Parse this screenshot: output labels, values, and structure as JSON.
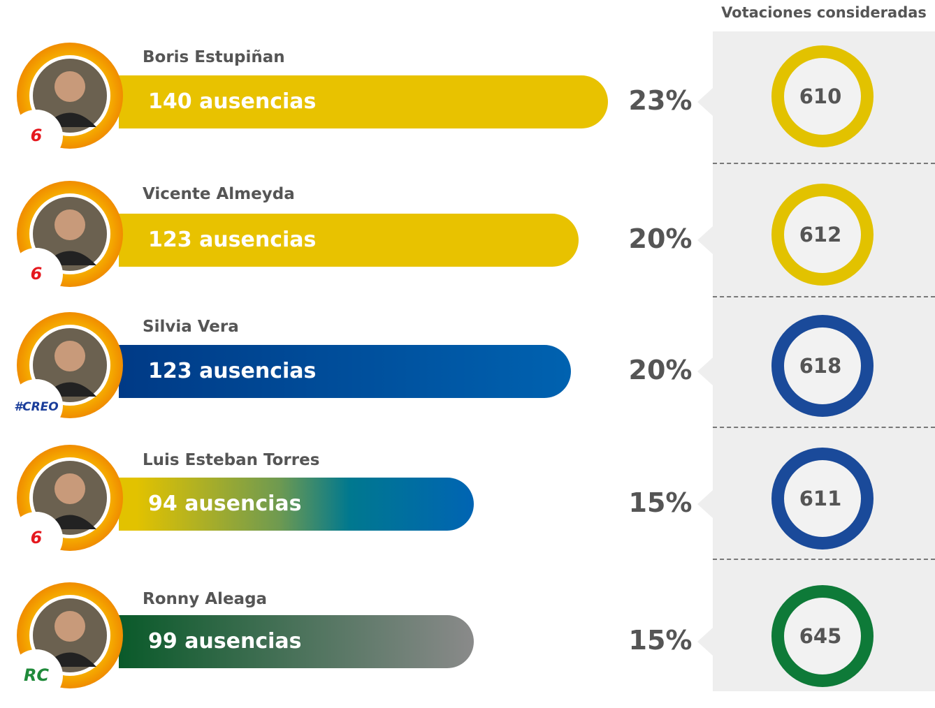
{
  "header": {
    "title": "Votaciones consideradas"
  },
  "rows": [
    {
      "name": "Boris Estupiñan",
      "absences": "140 ausencias",
      "percent": "23%",
      "votes": "610",
      "party": "6"
    },
    {
      "name": "Vicente Almeyda",
      "absences": "123 ausencias",
      "percent": "20%",
      "votes": "612",
      "party": "6"
    },
    {
      "name": "Silvia Vera",
      "absences": "123 ausencias",
      "percent": "20%",
      "votes": "618",
      "party": "#CREO"
    },
    {
      "name": "Luis Esteban Torres",
      "absences": "94 ausencias",
      "percent": "15%",
      "votes": "611",
      "party": "6"
    },
    {
      "name": "Ronny Aleaga",
      "absences": "99 ausencias",
      "percent": "15%",
      "votes": "645",
      "party": "RC"
    }
  ]
}
